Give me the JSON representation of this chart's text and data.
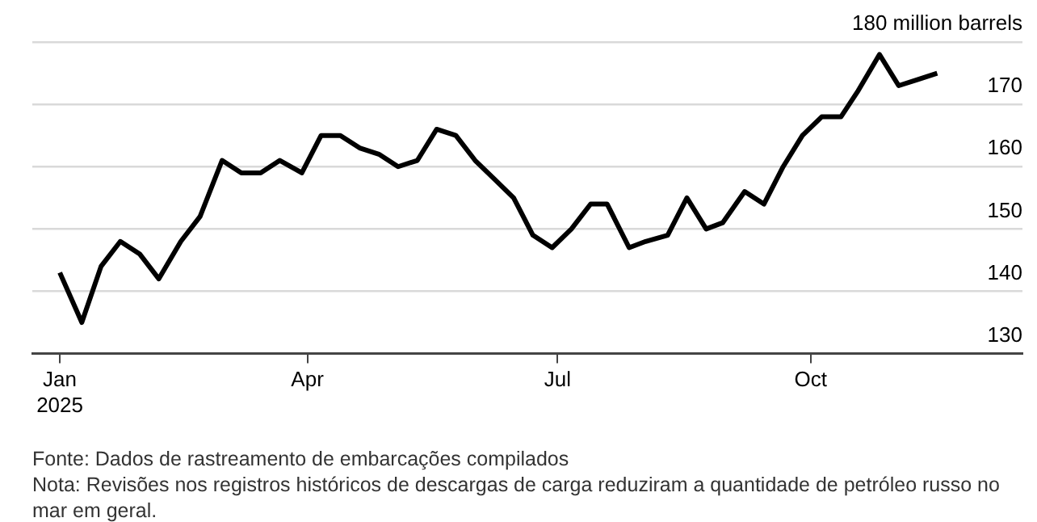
{
  "chart_data": {
    "type": "line",
    "color": "#000000",
    "marker": "none",
    "grid": "y",
    "x": [
      "2025-01-01",
      "2025-01-09",
      "2025-01-16",
      "2025-01-23",
      "2025-01-30",
      "2025-02-06",
      "2025-02-14",
      "2025-02-21",
      "2025-03-01",
      "2025-03-08",
      "2025-03-15",
      "2025-03-22",
      "2025-03-30",
      "2025-04-06",
      "2025-04-13",
      "2025-04-20",
      "2025-04-27",
      "2025-05-04",
      "2025-05-11",
      "2025-05-18",
      "2025-05-25",
      "2025-06-01",
      "2025-06-08",
      "2025-06-15",
      "2025-06-22",
      "2025-06-29",
      "2025-07-06",
      "2025-07-13",
      "2025-07-19",
      "2025-07-27",
      "2025-08-02",
      "2025-08-10",
      "2025-08-17",
      "2025-08-24",
      "2025-08-30",
      "2025-09-07",
      "2025-09-14",
      "2025-09-21",
      "2025-09-28",
      "2025-10-05",
      "2025-10-12",
      "2025-10-18",
      "2025-10-26",
      "2025-11-02",
      "2025-11-09",
      "2025-11-16"
    ],
    "values": [
      143,
      135,
      144,
      148,
      146,
      142,
      148,
      152,
      161,
      159,
      159,
      161,
      159,
      165,
      165,
      163,
      162,
      160,
      161,
      166,
      165,
      161,
      158,
      155,
      149,
      147,
      150,
      154,
      154,
      147,
      148,
      149,
      155,
      150,
      151,
      156,
      154,
      160,
      165,
      168,
      168,
      172,
      178,
      173,
      174,
      175
    ],
    "xlim": [
      "2024-12-22",
      "2025-12-17"
    ],
    "xticks": [
      {
        "value": "2025-01-01",
        "label": "Jan\n2025"
      },
      {
        "value": "2025-04-01",
        "label": "Apr"
      },
      {
        "value": "2025-07-01",
        "label": "Jul"
      },
      {
        "value": "2025-10-01",
        "label": "Oct"
      }
    ],
    "ylim": [
      130,
      180
    ],
    "yticks": [
      130,
      140,
      150,
      160,
      170,
      {
        "value": 180,
        "label": "180 million barrels"
      }
    ],
    "annotations": [
      "Fonte: Dados de rastreamento de embarcações compilados",
      "Nota: Revisões nos registros históricos de descargas de carga reduziram a quantidade de petróleo russo no mar em geral."
    ]
  }
}
